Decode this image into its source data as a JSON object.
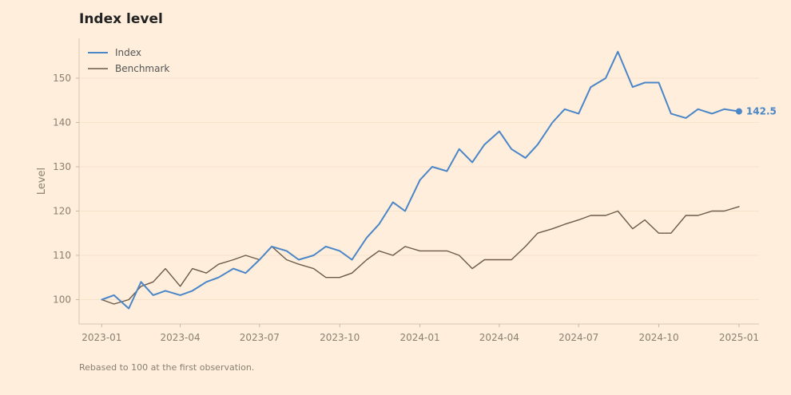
{
  "chart_data": {
    "type": "line",
    "title": "Index level",
    "ylabel": "Level",
    "xlabel": "",
    "footnote": "Rebased to 100 at the first observation.",
    "ylim": [
      94.5,
      159
    ],
    "xlim": [
      "2022-12-06",
      "2025-01-24"
    ],
    "yticks": [
      100,
      110,
      120,
      130,
      140,
      150
    ],
    "xticks": [
      "2023-01",
      "2023-04",
      "2023-07",
      "2023-10",
      "2024-01",
      "2024-04",
      "2024-07",
      "2024-10",
      "2025-01"
    ],
    "grid": true,
    "legend": "top-left",
    "end_label": "142.5",
    "colors": {
      "Index": "#4a86c8",
      "Benchmark": "#6b5a48",
      "background": "#feeedb",
      "grid": "#f5e3cc"
    },
    "x": [
      "2023-01-01",
      "2023-01-15",
      "2023-02-01",
      "2023-02-15",
      "2023-03-01",
      "2023-03-15",
      "2023-04-01",
      "2023-04-15",
      "2023-05-01",
      "2023-05-15",
      "2023-06-01",
      "2023-06-15",
      "2023-07-01",
      "2023-07-15",
      "2023-08-01",
      "2023-08-15",
      "2023-09-01",
      "2023-09-15",
      "2023-10-01",
      "2023-10-15",
      "2023-11-01",
      "2023-11-15",
      "2023-12-01",
      "2023-12-15",
      "2024-01-01",
      "2024-01-15",
      "2024-02-01",
      "2024-02-15",
      "2024-03-01",
      "2024-03-15",
      "2024-04-01",
      "2024-04-15",
      "2024-05-01",
      "2024-05-15",
      "2024-06-01",
      "2024-06-15",
      "2024-07-01",
      "2024-07-15",
      "2024-08-01",
      "2024-08-15",
      "2024-09-01",
      "2024-09-15",
      "2024-10-01",
      "2024-10-15",
      "2024-11-01",
      "2024-11-15",
      "2024-12-01",
      "2024-12-15",
      "2025-01-01"
    ],
    "series": [
      {
        "name": "Index",
        "values": [
          100,
          101,
          98,
          104,
          101,
          102,
          101,
          102,
          104,
          105,
          107,
          106,
          109,
          112,
          111,
          109,
          110,
          112,
          111,
          109,
          114,
          117,
          122,
          120,
          127,
          130,
          129,
          134,
          131,
          135,
          138,
          134,
          132,
          135,
          140,
          143,
          142,
          148,
          150,
          156,
          148,
          149,
          149,
          142,
          141,
          143,
          142,
          143,
          142.5
        ]
      },
      {
        "name": "Benchmark",
        "values": [
          100,
          99,
          100,
          103,
          104,
          107,
          103,
          107,
          106,
          108,
          109,
          110,
          109,
          112,
          109,
          108,
          107,
          105,
          105,
          106,
          109,
          111,
          110,
          112,
          111,
          111,
          111,
          110,
          107,
          109,
          109,
          109,
          112,
          115,
          116,
          117,
          118,
          119,
          119,
          120,
          116,
          118,
          115,
          115,
          119,
          119,
          120,
          120,
          121
        ]
      }
    ]
  }
}
